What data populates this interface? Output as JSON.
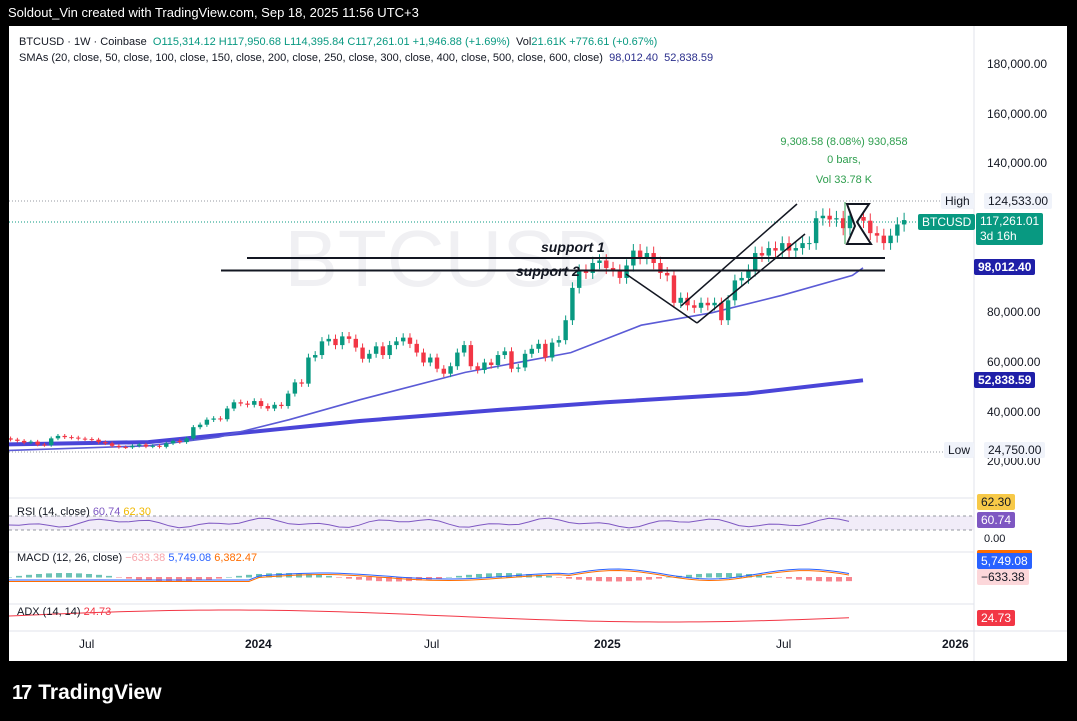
{
  "header": {
    "text": "Soldout_Vin created with TradingView.com, Sep 18, 2025 11:56 UTC+3"
  },
  "footer": {
    "logo_mark": "17",
    "logo_text": "TradingView"
  },
  "legend": {
    "symbol": "BTCUSD · 1W · Coinbase",
    "open": "O115,314.12",
    "high": "H117,950.68",
    "low": "L114,395.84",
    "close": "C117,261.01",
    "change": "+1,946.88 (+1.69%)",
    "vol_label": "Vol",
    "vol": "21.61K",
    "vol_change": "+776.61 (+0.67%)",
    "sma_label": "SMAs (20, close, 50, close, 100, close, 150, close, 200, close, 250, close, 300, close, 400, close, 500, close, 600, close)",
    "sma1": "98,012.40",
    "sma2": "52,838.59"
  },
  "measure": {
    "line1": "9,308.58 (8.08%) 930,858",
    "line2": "0 bars,",
    "line3": "Vol 33.78 K"
  },
  "annotations": {
    "support1": "support 1",
    "support2": "support 2",
    "watermark": "BTCUSD"
  },
  "price_axis": {
    "ticks": [
      "180,000.00",
      "160,000.00",
      "140,000.00",
      "80,000.00",
      "60,000.00",
      "40,000.00",
      "20,000.00"
    ],
    "high_label": "High",
    "high_value": "124,533.00",
    "low_label": "Low",
    "low_value": "24,750.00",
    "last_symbol": "BTCUSD",
    "last_price": "117,261.01",
    "countdown": "3d 16h",
    "sma1_tag": "98,012.40",
    "sma2_tag": "52,838.59"
  },
  "time_axis": {
    "ticks": [
      "Jul",
      "2024",
      "Jul",
      "2025",
      "Jul",
      "2026"
    ]
  },
  "rsi": {
    "label": "RSI (14, close)",
    "v1": "60.74",
    "v2": "62.30",
    "tag1": "62.30",
    "tag2": "60.74"
  },
  "macd": {
    "label": "MACD (12, 26, close)",
    "hist": "−633.38",
    "macd": "5,749.08",
    "signal": "6,382.47",
    "axis": "0.00",
    "tag1": "5,749.08",
    "tag2": "−633.38"
  },
  "adx": {
    "label": "ADX (14, 14)",
    "value": "24.73",
    "tag": "24.73"
  },
  "colors": {
    "up": "#089981",
    "down": "#f23645",
    "sma_short": "#5b5bd6",
    "sma_long": "#4a45d8",
    "tag_blue": "#1f1fa8"
  },
  "chart_data": {
    "type": "candlestick",
    "symbol": "BTCUSD",
    "interval": "1W",
    "ylim": [
      20000,
      190000
    ],
    "x_range": [
      "2023-04",
      "2026-03"
    ],
    "candles_close": [
      30000,
      29500,
      29000,
      28500,
      27800,
      28200,
      27000,
      26800,
      29500,
      30500,
      30000,
      29800,
      29400,
      29200,
      29000,
      28000,
      27500,
      26500,
      26000,
      25900,
      26500,
      27000,
      26200,
      26500,
      26100,
      27500,
      28500,
      28000,
      29500,
      34000,
      35000,
      37000,
      37500,
      37200,
      41500,
      44000,
      43500,
      43000,
      44500,
      42500,
      41500,
      43000,
      42500,
      47500,
      52000,
      51500,
      62000,
      63000,
      68500,
      69500,
      67000,
      70500,
      69500,
      66000,
      61500,
      63500,
      66500,
      63000,
      67000,
      68500,
      70000,
      67500,
      64000,
      60000,
      62000,
      57500,
      55500,
      58500,
      64000,
      67000,
      58500,
      57000,
      60000,
      59000,
      63000,
      64500,
      57500,
      58000,
      63500,
      65500,
      67500,
      62000,
      68000,
      69000,
      77000,
      90000,
      97000,
      96000,
      100000,
      101000,
      98000,
      97000,
      94000,
      99000,
      105000,
      102000,
      104000,
      100000,
      96000,
      95000,
      84000,
      86000,
      83000,
      82000,
      84000,
      83000,
      84000,
      77000,
      85000,
      93000,
      94000,
      97000,
      104000,
      103000,
      106000,
      105000,
      108000,
      105000,
      106000,
      108000,
      108000,
      118000,
      119000,
      117500,
      118000,
      114000,
      119000,
      118500,
      117000,
      112000,
      111000,
      108000,
      111000,
      115500,
      117261
    ],
    "sma_short_points": [
      [
        2023.27,
        24500
      ],
      [
        2023.7,
        26500
      ],
      [
        2023.9,
        30000
      ],
      [
        2024.1,
        37000
      ],
      [
        2024.3,
        45000
      ],
      [
        2024.6,
        56000
      ],
      [
        2024.9,
        64000
      ],
      [
        2025.1,
        75000
      ],
      [
        2025.3,
        80000
      ],
      [
        2025.5,
        87000
      ],
      [
        2025.7,
        95000
      ],
      [
        2025.73,
        98012.4
      ]
    ],
    "sma_long_points": [
      [
        2023.27,
        27000
      ],
      [
        2023.7,
        28000
      ],
      [
        2023.95,
        31500
      ],
      [
        2024.3,
        36500
      ],
      [
        2024.7,
        41000
      ],
      [
        2025.0,
        44000
      ],
      [
        2025.4,
        47500
      ],
      [
        2025.73,
        52838.59
      ]
    ],
    "horizontal_levels": [
      {
        "name": "support 1",
        "value": 102000
      },
      {
        "name": "support 2",
        "value": 97000
      }
    ],
    "rsi_value": 60.74,
    "macd_value": 5749.08,
    "signal_value": 6382.47,
    "hist_value": -633.38,
    "adx_value": 24.73
  }
}
